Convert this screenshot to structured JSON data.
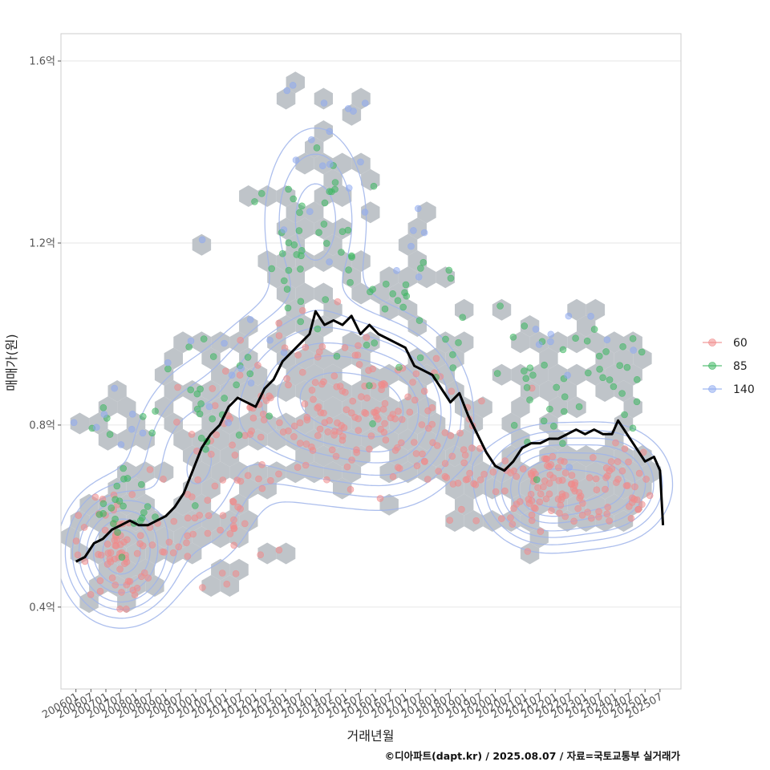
{
  "chart_data": {
    "type": "scatter",
    "title": "",
    "xlabel": "거래년월",
    "ylabel": "매매가(원)",
    "caption": "©디아파트(dapt.kr) / 2025.08.07 / 자료=국토교통부 실거래가",
    "ylim": [
      0.22,
      1.66
    ],
    "y_unit": "억",
    "y_ticks": [
      {
        "value": 0.4,
        "label": "0.4억"
      },
      {
        "value": 0.8,
        "label": "0.8억"
      },
      {
        "value": 1.2,
        "label": "1.2억"
      },
      {
        "value": 1.6,
        "label": "1.6억"
      }
    ],
    "x_range": [
      2005.5,
      2026.2
    ],
    "x_ticks": [
      {
        "value": 2006.0,
        "label": "200601"
      },
      {
        "value": 2006.5,
        "label": "200607"
      },
      {
        "value": 2007.0,
        "label": "200701"
      },
      {
        "value": 2007.5,
        "label": "200707"
      },
      {
        "value": 2008.0,
        "label": "200801"
      },
      {
        "value": 2008.5,
        "label": "200807"
      },
      {
        "value": 2009.0,
        "label": "200901"
      },
      {
        "value": 2009.5,
        "label": "200907"
      },
      {
        "value": 2010.0,
        "label": "201001"
      },
      {
        "value": 2010.5,
        "label": "201007"
      },
      {
        "value": 2011.0,
        "label": "201101"
      },
      {
        "value": 2011.5,
        "label": "201107"
      },
      {
        "value": 2012.0,
        "label": "201201"
      },
      {
        "value": 2012.5,
        "label": "201207"
      },
      {
        "value": 2013.0,
        "label": "201301"
      },
      {
        "value": 2013.5,
        "label": "201307"
      },
      {
        "value": 2014.0,
        "label": "201401"
      },
      {
        "value": 2014.5,
        "label": "201407"
      },
      {
        "value": 2015.0,
        "label": "201501"
      },
      {
        "value": 2015.5,
        "label": "201507"
      },
      {
        "value": 2016.0,
        "label": "201601"
      },
      {
        "value": 2016.5,
        "label": "201607"
      },
      {
        "value": 2017.0,
        "label": "201701"
      },
      {
        "value": 2017.5,
        "label": "201707"
      },
      {
        "value": 2018.0,
        "label": "201801"
      },
      {
        "value": 2018.5,
        "label": "201807"
      },
      {
        "value": 2019.0,
        "label": "201901"
      },
      {
        "value": 2019.5,
        "label": "201907"
      },
      {
        "value": 2020.0,
        "label": "202001"
      },
      {
        "value": 2020.5,
        "label": "202007"
      },
      {
        "value": 2021.0,
        "label": "202101"
      },
      {
        "value": 2021.5,
        "label": "202107"
      },
      {
        "value": 2022.0,
        "label": "202201"
      },
      {
        "value": 2022.5,
        "label": "202207"
      },
      {
        "value": 2023.0,
        "label": "202301"
      },
      {
        "value": 2023.5,
        "label": "202307"
      },
      {
        "value": 2024.0,
        "label": "202401"
      },
      {
        "value": 2024.5,
        "label": "202407"
      },
      {
        "value": 2025.0,
        "label": "202501"
      },
      {
        "value": 2025.5,
        "label": "202507"
      }
    ],
    "legend": {
      "position": "right",
      "items": [
        {
          "label": "60",
          "color": "#F08A8A"
        },
        {
          "label": "85",
          "color": "#3DB660"
        },
        {
          "label": "140",
          "color": "#8EAAF0"
        }
      ]
    },
    "grid": true,
    "background_layers": [
      "hexbin density (grey)",
      "2d density contours (blue)"
    ],
    "hex_color": "#BFC4C9",
    "contour_color": "#9FB4EA",
    "trend_line": {
      "name": "moving average",
      "color": "#000000",
      "points": [
        [
          2006.0,
          0.5
        ],
        [
          2006.3,
          0.51
        ],
        [
          2006.6,
          0.54
        ],
        [
          2006.9,
          0.55
        ],
        [
          2007.2,
          0.57
        ],
        [
          2007.5,
          0.58
        ],
        [
          2007.8,
          0.59
        ],
        [
          2008.1,
          0.58
        ],
        [
          2008.4,
          0.58
        ],
        [
          2008.7,
          0.59
        ],
        [
          2009.0,
          0.6
        ],
        [
          2009.3,
          0.62
        ],
        [
          2009.6,
          0.65
        ],
        [
          2009.9,
          0.7
        ],
        [
          2010.2,
          0.75
        ],
        [
          2010.5,
          0.78
        ],
        [
          2010.8,
          0.8
        ],
        [
          2011.1,
          0.84
        ],
        [
          2011.4,
          0.86
        ],
        [
          2011.7,
          0.85
        ],
        [
          2012.0,
          0.84
        ],
        [
          2012.3,
          0.88
        ],
        [
          2012.6,
          0.9
        ],
        [
          2012.9,
          0.94
        ],
        [
          2013.2,
          0.96
        ],
        [
          2013.5,
          0.98
        ],
        [
          2013.8,
          1.0
        ],
        [
          2014.0,
          1.05
        ],
        [
          2014.3,
          1.02
        ],
        [
          2014.6,
          1.03
        ],
        [
          2014.9,
          1.02
        ],
        [
          2015.2,
          1.04
        ],
        [
          2015.5,
          1.0
        ],
        [
          2015.8,
          1.02
        ],
        [
          2016.1,
          1.0
        ],
        [
          2016.4,
          0.99
        ],
        [
          2016.7,
          0.98
        ],
        [
          2017.0,
          0.97
        ],
        [
          2017.3,
          0.93
        ],
        [
          2017.6,
          0.92
        ],
        [
          2017.9,
          0.91
        ],
        [
          2018.2,
          0.88
        ],
        [
          2018.5,
          0.85
        ],
        [
          2018.8,
          0.87
        ],
        [
          2019.1,
          0.82
        ],
        [
          2019.4,
          0.78
        ],
        [
          2019.7,
          0.74
        ],
        [
          2020.0,
          0.71
        ],
        [
          2020.3,
          0.7
        ],
        [
          2020.6,
          0.72
        ],
        [
          2020.9,
          0.75
        ],
        [
          2021.2,
          0.76
        ],
        [
          2021.5,
          0.76
        ],
        [
          2021.8,
          0.77
        ],
        [
          2022.1,
          0.77
        ],
        [
          2022.4,
          0.78
        ],
        [
          2022.7,
          0.79
        ],
        [
          2023.0,
          0.78
        ],
        [
          2023.3,
          0.79
        ],
        [
          2023.6,
          0.78
        ],
        [
          2023.9,
          0.78
        ],
        [
          2024.1,
          0.81
        ],
        [
          2024.4,
          0.78
        ],
        [
          2024.7,
          0.75
        ],
        [
          2025.0,
          0.72
        ],
        [
          2025.3,
          0.73
        ],
        [
          2025.5,
          0.7
        ],
        [
          2025.6,
          0.58
        ]
      ]
    },
    "series": [
      {
        "name": "60",
        "color": "#F08A8A",
        "centers": [
          [
            2007.5,
            0.52,
            0.6,
            0.06,
            70
          ],
          [
            2010.5,
            0.62,
            1.0,
            0.08,
            50
          ],
          [
            2013.5,
            0.83,
            1.5,
            0.08,
            90
          ],
          [
            2016.5,
            0.8,
            1.5,
            0.08,
            80
          ],
          [
            2019.0,
            0.72,
            0.8,
            0.08,
            30
          ],
          [
            2021.5,
            0.66,
            1.0,
            0.05,
            70
          ],
          [
            2023.8,
            0.66,
            1.0,
            0.05,
            50
          ]
        ]
      },
      {
        "name": "85",
        "color": "#3DB660",
        "centers": [
          [
            2007.5,
            0.66,
            0.8,
            0.07,
            30
          ],
          [
            2010.2,
            0.85,
            0.8,
            0.08,
            25
          ],
          [
            2013.8,
            1.2,
            1.0,
            0.1,
            40
          ],
          [
            2016.8,
            1.05,
            1.2,
            0.1,
            30
          ],
          [
            2021.7,
            0.85,
            1.0,
            0.08,
            25
          ],
          [
            2024.0,
            0.88,
            0.8,
            0.08,
            20
          ]
        ]
      },
      {
        "name": "140",
        "color": "#8EAAF0",
        "centers": [
          [
            2007.5,
            0.85,
            0.8,
            0.06,
            10
          ],
          [
            2011.0,
            1.0,
            1.0,
            0.1,
            10
          ],
          [
            2014.5,
            1.4,
            1.0,
            0.12,
            15
          ],
          [
            2017.0,
            1.3,
            1.0,
            0.12,
            8
          ],
          [
            2022.5,
            1.02,
            1.2,
            0.1,
            10
          ]
        ]
      }
    ],
    "density_peaks": [
      {
        "x": 2007.5,
        "y": 0.52,
        "sx": 0.9,
        "sy": 0.07,
        "w": 1.0
      },
      {
        "x": 2014.2,
        "y": 0.86,
        "sx": 1.7,
        "sy": 0.1,
        "w": 0.85
      },
      {
        "x": 2016.6,
        "y": 0.82,
        "sx": 1.2,
        "sy": 0.09,
        "w": 0.6
      },
      {
        "x": 2021.7,
        "y": 0.66,
        "sx": 1.0,
        "sy": 0.06,
        "w": 0.9
      },
      {
        "x": 2023.7,
        "y": 0.67,
        "sx": 1.0,
        "sy": 0.06,
        "w": 0.7
      },
      {
        "x": 2014.0,
        "y": 1.25,
        "sx": 1.0,
        "sy": 0.12,
        "w": 0.25
      },
      {
        "x": 2010.0,
        "y": 0.7,
        "sx": 1.2,
        "sy": 0.12,
        "w": 0.3
      }
    ],
    "contour_levels": [
      0.06,
      0.12,
      0.2,
      0.3,
      0.45,
      0.6,
      0.8
    ]
  }
}
